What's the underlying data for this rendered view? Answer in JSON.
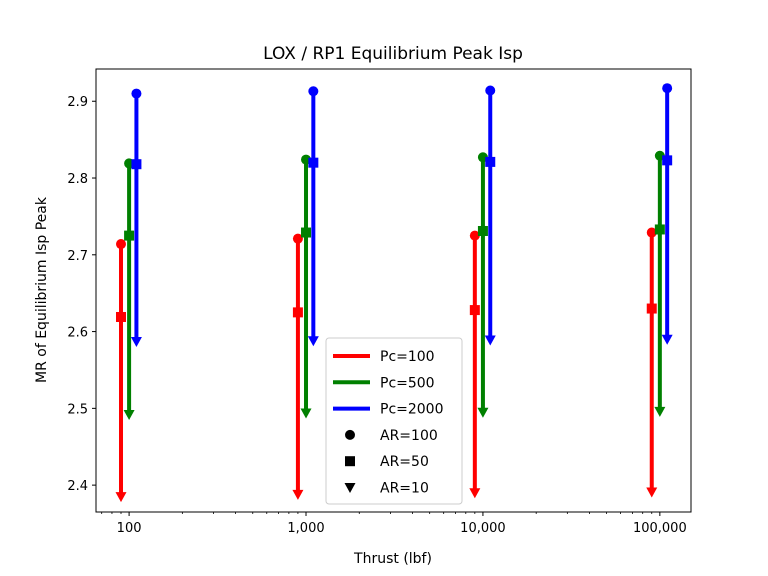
{
  "chart_data": {
    "type": "scatter",
    "title": "LOX / RP1 Equilibrium Peak Isp",
    "xlabel": "Thrust (lbf)",
    "ylabel": "MR of Equilibrium Isp Peak",
    "x_scale": "log",
    "xlim": [
      65,
      150000
    ],
    "ylim": [
      2.365,
      2.942
    ],
    "grid": false,
    "legend_position": "bottom-center",
    "x_ticks": [
      {
        "value": 100,
        "label": "100"
      },
      {
        "value": 1000,
        "label": "1,000"
      },
      {
        "value": 10000,
        "label": "10,000"
      },
      {
        "value": 100000,
        "label": "100,000"
      }
    ],
    "y_ticks": [
      {
        "value": 2.4,
        "label": "2.4"
      },
      {
        "value": 2.5,
        "label": "2.5"
      },
      {
        "value": 2.6,
        "label": "2.6"
      },
      {
        "value": 2.7,
        "label": "2.7"
      },
      {
        "value": 2.8,
        "label": "2.8"
      },
      {
        "value": 2.9,
        "label": "2.9"
      }
    ],
    "thrust_values": [
      100,
      1000,
      10000,
      100000
    ],
    "series": [
      {
        "name": "Pc=100",
        "color": "#ff0000",
        "x_factor": 0.9,
        "AR100": [
          2.714,
          2.721,
          2.725,
          2.729
        ],
        "AR50": [
          2.619,
          2.625,
          2.628,
          2.63
        ],
        "AR10": [
          2.385,
          2.388,
          2.39,
          2.391
        ]
      },
      {
        "name": "Pc=500",
        "color": "#008000",
        "x_factor": 1.0,
        "AR100": [
          2.819,
          2.824,
          2.827,
          2.829
        ],
        "AR50": [
          2.725,
          2.729,
          2.731,
          2.733
        ],
        "AR10": [
          2.492,
          2.494,
          2.495,
          2.496
        ]
      },
      {
        "name": "Pc=2000",
        "color": "#0000ff",
        "x_factor": 1.1,
        "AR100": [
          2.91,
          2.913,
          2.914,
          2.917
        ],
        "AR50": [
          2.818,
          2.82,
          2.821,
          2.823
        ],
        "AR10": [
          2.587,
          2.588,
          2.589,
          2.59
        ]
      }
    ],
    "marker_legend": [
      {
        "label": "AR=100",
        "marker": "circle"
      },
      {
        "label": "AR=50",
        "marker": "square"
      },
      {
        "label": "AR=10",
        "marker": "triangle-down"
      }
    ]
  }
}
